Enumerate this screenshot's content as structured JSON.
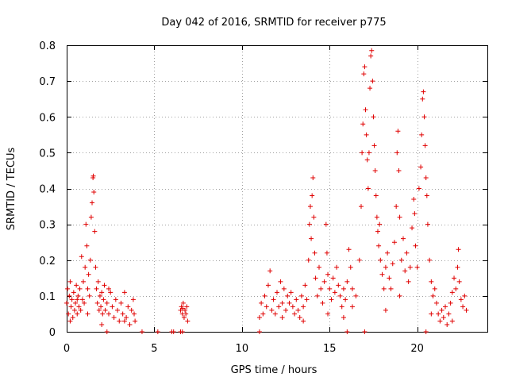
{
  "chart_data": {
    "type": "scatter",
    "title": "Day 042 of 2016, SRMTID for receiver p775",
    "xlabel": "GPS time / hours",
    "ylabel": "SRMTID / TECUs",
    "xlim": [
      0,
      24
    ],
    "ylim": [
      0,
      0.8
    ],
    "x_ticks": [
      0,
      5,
      10,
      15,
      20
    ],
    "y_ticks": [
      0,
      0.1,
      0.2,
      0.3,
      0.4,
      0.5,
      0.6,
      0.7,
      0.8
    ],
    "x_tick_labels": [
      "0",
      "5",
      "10",
      "15",
      "20"
    ],
    "y_tick_labels": [
      "0",
      "0.1",
      "0.2",
      "0.3",
      "0.4",
      "0.5",
      "0.6",
      "0.7",
      "0.8"
    ],
    "grid": true,
    "marker": "+",
    "color": "#e00000",
    "series": [
      {
        "name": "SRMTID",
        "points": [
          [
            0.0,
            0.08
          ],
          [
            0.05,
            0.12
          ],
          [
            0.1,
            0.05
          ],
          [
            0.15,
            0.1
          ],
          [
            0.2,
            0.14
          ],
          [
            0.25,
            0.07
          ],
          [
            0.3,
            0.09
          ],
          [
            0.35,
            0.04
          ],
          [
            0.4,
            0.11
          ],
          [
            0.45,
            0.06
          ],
          [
            0.5,
            0.08
          ],
          [
            0.55,
            0.13
          ],
          [
            0.6,
            0.05
          ],
          [
            0.65,
            0.1
          ],
          [
            0.7,
            0.07
          ],
          [
            0.75,
            0.12
          ],
          [
            0.8,
            0.06
          ],
          [
            0.85,
            0.21
          ],
          [
            0.9,
            0.09
          ],
          [
            0.95,
            0.14
          ],
          [
            1.0,
            0.08
          ],
          [
            1.05,
            0.18
          ],
          [
            1.1,
            0.3
          ],
          [
            1.15,
            0.24
          ],
          [
            1.2,
            0.12
          ],
          [
            1.25,
            0.16
          ],
          [
            1.3,
            0.1
          ],
          [
            1.35,
            0.2
          ],
          [
            1.4,
            0.32
          ],
          [
            1.45,
            0.36
          ],
          [
            1.5,
            0.43
          ],
          [
            1.52,
            0.435
          ],
          [
            1.55,
            0.39
          ],
          [
            1.6,
            0.28
          ],
          [
            1.65,
            0.18
          ],
          [
            1.7,
            0.12
          ],
          [
            1.75,
            0.08
          ],
          [
            1.8,
            0.14
          ],
          [
            1.85,
            0.06
          ],
          [
            1.9,
            0.1
          ],
          [
            1.95,
            0.07
          ],
          [
            2.0,
            0.11
          ],
          [
            2.05,
            0.05
          ],
          [
            2.1,
            0.09
          ],
          [
            2.15,
            0.13
          ],
          [
            2.2,
            0.06
          ],
          [
            2.3,
            0.08
          ],
          [
            2.4,
            0.05
          ],
          [
            2.5,
            0.11
          ],
          [
            2.6,
            0.07
          ],
          [
            2.7,
            0.04
          ],
          [
            2.8,
            0.09
          ],
          [
            2.9,
            0.06
          ],
          [
            3.0,
            0.03
          ],
          [
            3.1,
            0.08
          ],
          [
            3.2,
            0.05
          ],
          [
            3.3,
            0.11
          ],
          [
            3.4,
            0.04
          ],
          [
            3.5,
            0.07
          ],
          [
            3.6,
            0.02
          ],
          [
            3.7,
            0.06
          ],
          [
            3.8,
            0.09
          ],
          [
            3.85,
            0.05
          ],
          [
            3.9,
            0.03
          ],
          [
            0.2,
            0.03
          ],
          [
            0.6,
            0.09
          ],
          [
            1.2,
            0.05
          ],
          [
            2.0,
            0.02
          ],
          [
            2.4,
            0.12
          ],
          [
            3.3,
            0.03
          ],
          [
            6.5,
            0.06
          ],
          [
            6.55,
            0.07
          ],
          [
            6.6,
            0.05
          ],
          [
            6.65,
            0.08
          ],
          [
            6.7,
            0.04
          ],
          [
            6.75,
            0.06
          ],
          [
            6.8,
            0.05
          ],
          [
            6.85,
            0.07
          ],
          [
            6.9,
            0.03
          ],
          [
            6.62,
            0.065
          ],
          [
            6.0,
            0.0
          ],
          [
            6.1,
            0.0
          ],
          [
            6.5,
            0.0
          ],
          [
            6.6,
            0.0
          ],
          [
            11.0,
            0.0
          ],
          [
            16.0,
            0.0
          ],
          [
            17.0,
            0.0
          ],
          [
            20.5,
            0.0
          ],
          [
            2.3,
            0.0
          ],
          [
            4.3,
            0.0
          ],
          [
            5.2,
            0.0
          ],
          [
            11.0,
            0.04
          ],
          [
            11.1,
            0.08
          ],
          [
            11.2,
            0.05
          ],
          [
            11.3,
            0.1
          ],
          [
            11.4,
            0.07
          ],
          [
            11.5,
            0.13
          ],
          [
            11.6,
            0.17
          ],
          [
            11.7,
            0.06
          ],
          [
            11.8,
            0.09
          ],
          [
            11.9,
            0.05
          ],
          [
            12.0,
            0.11
          ],
          [
            12.1,
            0.07
          ],
          [
            12.2,
            0.14
          ],
          [
            12.3,
            0.08
          ],
          [
            12.4,
            0.12
          ],
          [
            12.5,
            0.06
          ],
          [
            12.6,
            0.1
          ],
          [
            12.7,
            0.08
          ],
          [
            12.8,
            0.11
          ],
          [
            12.9,
            0.07
          ],
          [
            13.0,
            0.05
          ],
          [
            13.1,
            0.09
          ],
          [
            13.2,
            0.06
          ],
          [
            13.3,
            0.04
          ],
          [
            13.4,
            0.1
          ],
          [
            13.5,
            0.07
          ],
          [
            13.6,
            0.13
          ],
          [
            13.7,
            0.09
          ],
          [
            13.8,
            0.2
          ],
          [
            13.85,
            0.3
          ],
          [
            13.9,
            0.35
          ],
          [
            13.95,
            0.26
          ],
          [
            14.0,
            0.38
          ],
          [
            14.05,
            0.43
          ],
          [
            14.1,
            0.32
          ],
          [
            14.15,
            0.22
          ],
          [
            14.2,
            0.15
          ],
          [
            14.3,
            0.1
          ],
          [
            14.4,
            0.18
          ],
          [
            14.5,
            0.12
          ],
          [
            14.6,
            0.08
          ],
          [
            14.7,
            0.14
          ],
          [
            14.8,
            0.3
          ],
          [
            14.85,
            0.22
          ],
          [
            14.9,
            0.16
          ],
          [
            15.0,
            0.12
          ],
          [
            15.1,
            0.09
          ],
          [
            15.2,
            0.15
          ],
          [
            15.3,
            0.11
          ],
          [
            15.4,
            0.18
          ],
          [
            15.5,
            0.13
          ],
          [
            15.6,
            0.1
          ],
          [
            15.7,
            0.07
          ],
          [
            15.8,
            0.12
          ],
          [
            15.9,
            0.09
          ],
          [
            16.0,
            0.14
          ],
          [
            16.1,
            0.23
          ],
          [
            16.2,
            0.18
          ],
          [
            16.3,
            0.12
          ],
          [
            16.5,
            0.1
          ],
          [
            16.7,
            0.2
          ],
          [
            16.8,
            0.35
          ],
          [
            16.85,
            0.5
          ],
          [
            16.9,
            0.58
          ],
          [
            16.95,
            0.72
          ],
          [
            17.0,
            0.74
          ],
          [
            17.05,
            0.62
          ],
          [
            17.1,
            0.55
          ],
          [
            17.15,
            0.48
          ],
          [
            17.2,
            0.4
          ],
          [
            17.25,
            0.5
          ],
          [
            17.3,
            0.68
          ],
          [
            17.35,
            0.77
          ],
          [
            17.4,
            0.785
          ],
          [
            17.45,
            0.7
          ],
          [
            17.5,
            0.6
          ],
          [
            17.55,
            0.52
          ],
          [
            17.6,
            0.45
          ],
          [
            17.65,
            0.38
          ],
          [
            17.7,
            0.32
          ],
          [
            17.75,
            0.28
          ],
          [
            17.8,
            0.24
          ],
          [
            17.85,
            0.3
          ],
          [
            17.9,
            0.2
          ],
          [
            18.0,
            0.16
          ],
          [
            18.1,
            0.12
          ],
          [
            18.2,
            0.18
          ],
          [
            18.3,
            0.22
          ],
          [
            18.4,
            0.15
          ],
          [
            18.5,
            0.12
          ],
          [
            18.6,
            0.19
          ],
          [
            18.7,
            0.25
          ],
          [
            18.8,
            0.35
          ],
          [
            18.85,
            0.5
          ],
          [
            18.9,
            0.56
          ],
          [
            18.95,
            0.45
          ],
          [
            19.0,
            0.32
          ],
          [
            19.1,
            0.2
          ],
          [
            19.2,
            0.26
          ],
          [
            19.3,
            0.17
          ],
          [
            19.4,
            0.22
          ],
          [
            19.5,
            0.14
          ],
          [
            19.6,
            0.18
          ],
          [
            19.7,
            0.29
          ],
          [
            19.8,
            0.37
          ],
          [
            19.85,
            0.33
          ],
          [
            19.9,
            0.24
          ],
          [
            20.0,
            0.18
          ],
          [
            20.1,
            0.4
          ],
          [
            20.2,
            0.46
          ],
          [
            20.25,
            0.55
          ],
          [
            20.3,
            0.65
          ],
          [
            20.35,
            0.67
          ],
          [
            20.4,
            0.6
          ],
          [
            20.45,
            0.52
          ],
          [
            20.5,
            0.43
          ],
          [
            20.55,
            0.38
          ],
          [
            20.6,
            0.3
          ],
          [
            20.7,
            0.2
          ],
          [
            20.8,
            0.14
          ],
          [
            20.9,
            0.1
          ],
          [
            21.0,
            0.12
          ],
          [
            21.1,
            0.08
          ],
          [
            21.2,
            0.05
          ],
          [
            21.3,
            0.03
          ],
          [
            21.4,
            0.06
          ],
          [
            21.5,
            0.04
          ],
          [
            21.6,
            0.07
          ],
          [
            21.7,
            0.02
          ],
          [
            21.8,
            0.05
          ],
          [
            21.9,
            0.08
          ],
          [
            22.0,
            0.11
          ],
          [
            22.1,
            0.15
          ],
          [
            22.2,
            0.12
          ],
          [
            22.3,
            0.18
          ],
          [
            22.35,
            0.23
          ],
          [
            22.4,
            0.14
          ],
          [
            22.5,
            0.09
          ],
          [
            22.6,
            0.07
          ],
          [
            22.7,
            0.1
          ],
          [
            22.8,
            0.06
          ],
          [
            13.5,
            0.03
          ],
          [
            14.9,
            0.05
          ],
          [
            15.8,
            0.04
          ],
          [
            16.3,
            0.07
          ],
          [
            18.2,
            0.06
          ],
          [
            19.0,
            0.1
          ],
          [
            20.8,
            0.05
          ],
          [
            22.0,
            0.03
          ],
          [
            12.3,
            0.04
          ]
        ]
      }
    ]
  }
}
